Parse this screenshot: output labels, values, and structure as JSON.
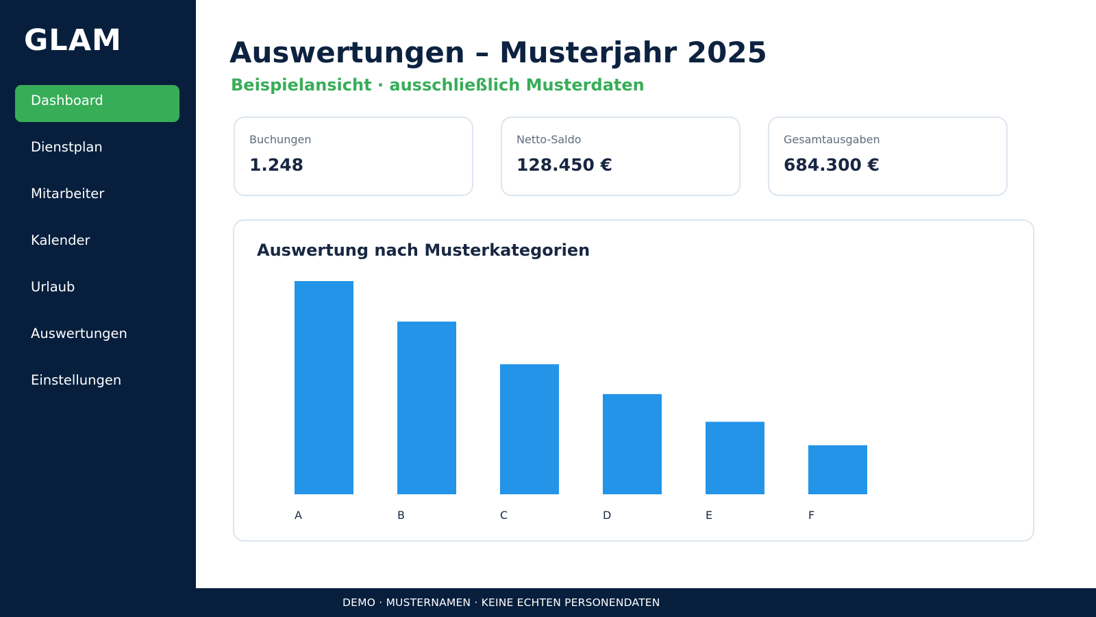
{
  "app": {
    "brand": "GLAM"
  },
  "sidebar": {
    "items": [
      {
        "label": "Dashboard",
        "active": true
      },
      {
        "label": "Dienstplan",
        "active": false
      },
      {
        "label": "Mitarbeiter",
        "active": false
      },
      {
        "label": "Kalender",
        "active": false
      },
      {
        "label": "Urlaub",
        "active": false
      },
      {
        "label": "Auswertungen",
        "active": false
      },
      {
        "label": "Einstellungen",
        "active": false
      }
    ]
  },
  "header": {
    "title": "Auswertungen – Musterjahr 2025",
    "subtitle": "Beispielansicht · ausschließlich Musterdaten"
  },
  "kpis": [
    {
      "label": "Buchungen",
      "value": "1.248"
    },
    {
      "label": "Netto-Saldo",
      "value": "128.450 €"
    },
    {
      "label": "Gesamtausgaben",
      "value": "684.300 €"
    }
  ],
  "chart_title": "Auswertung nach Musterkategorien",
  "chart_data": {
    "type": "bar",
    "title": "Auswertung nach Musterkategorien",
    "categories": [
      "A",
      "B",
      "C",
      "D",
      "E",
      "F"
    ],
    "values": [
      100,
      81,
      61,
      47,
      34,
      23
    ],
    "xlabel": "",
    "ylabel": "",
    "ylim": [
      0,
      100
    ],
    "grid": false,
    "bar_color": "#2394e8"
  },
  "footer": {
    "text": "DEMO · MUSTERNAMEN · KEINE ECHTEN PERSONENDATEN"
  },
  "colors": {
    "sidebar_bg": "#071f3d",
    "accent_green": "#37ad58",
    "bar_blue": "#2394e8",
    "title_navy": "#0c2240"
  }
}
